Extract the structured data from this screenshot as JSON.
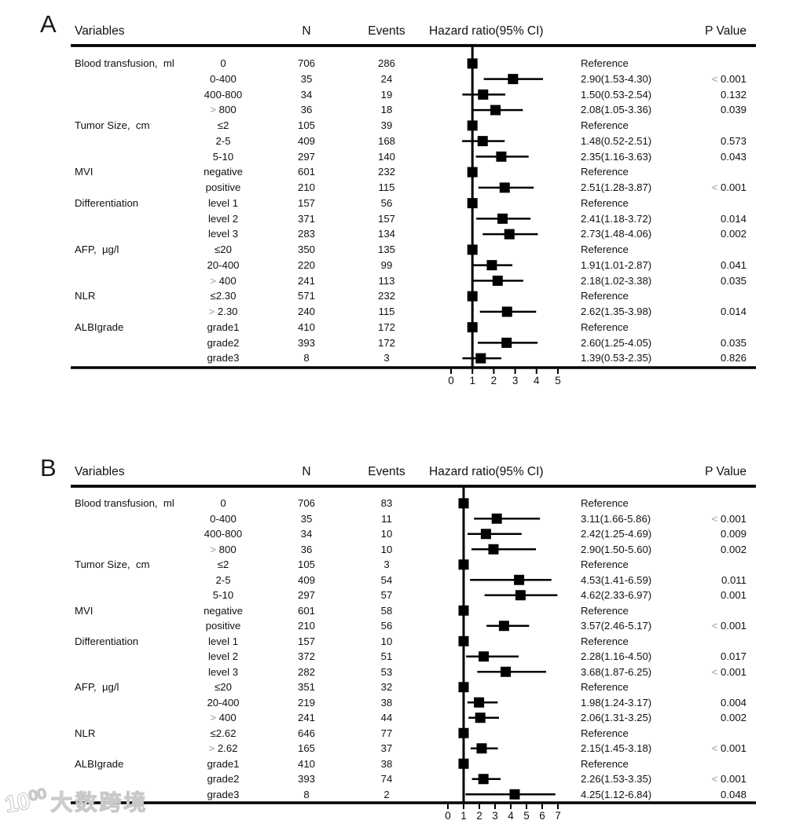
{
  "watermark": {
    "logo": "10⁰⁰",
    "text": "大数跨境"
  },
  "chart_data": [
    {
      "type": "scatter",
      "subtype": "forest-plot",
      "panel_label": "A",
      "title": "Hazard ratio(95% CI)",
      "columns": {
        "variables": "Variables",
        "n": "N",
        "events": "Events",
        "hazard": "Hazard ratio(95% CI)",
        "pvalue": "P Value"
      },
      "xticks": [
        0,
        1,
        2,
        3,
        4,
        5
      ],
      "xlim": [
        0,
        5.7
      ],
      "reference_line": 1,
      "rows": [
        {
          "variable": "Blood transfusion,  ml",
          "level": "0",
          "n": "706",
          "events": "286",
          "hr_text": "Reference",
          "p": "",
          "est": 1,
          "lo": null,
          "hi": null
        },
        {
          "variable": "",
          "level": "0-400",
          "n": "35",
          "events": "24",
          "hr_text": "2.90(1.53-4.30)",
          "p": "< 0.001",
          "est": 2.9,
          "lo": 1.53,
          "hi": 4.3
        },
        {
          "variable": "",
          "level": "400-800",
          "n": "34",
          "events": "19",
          "hr_text": "1.50(0.53-2.54)",
          "p": "0.132",
          "est": 1.5,
          "lo": 0.53,
          "hi": 2.54
        },
        {
          "variable": "",
          "level": "> 800",
          "n": "36",
          "events": "18",
          "hr_text": "2.08(1.05-3.36)",
          "p": "0.039",
          "est": 2.08,
          "lo": 1.05,
          "hi": 3.36
        },
        {
          "variable": "Tumor Size,  cm",
          "level": "≤2",
          "n": "105",
          "events": "39",
          "hr_text": "Reference",
          "p": "",
          "est": 1,
          "lo": null,
          "hi": null
        },
        {
          "variable": "",
          "level": "2-5",
          "n": "409",
          "events": "168",
          "hr_text": "1.48(0.52-2.51)",
          "p": "0.573",
          "est": 1.48,
          "lo": 0.52,
          "hi": 2.51
        },
        {
          "variable": "",
          "level": "5-10",
          "n": "297",
          "events": "140",
          "hr_text": "2.35(1.16-3.63)",
          "p": "0.043",
          "est": 2.35,
          "lo": 1.16,
          "hi": 3.63
        },
        {
          "variable": "MVI",
          "level": "negative",
          "n": "601",
          "events": "232",
          "hr_text": "Reference",
          "p": "",
          "est": 1,
          "lo": null,
          "hi": null
        },
        {
          "variable": "",
          "level": "positive",
          "n": "210",
          "events": "115",
          "hr_text": "2.51(1.28-3.87)",
          "p": "< 0.001",
          "est": 2.51,
          "lo": 1.28,
          "hi": 3.87
        },
        {
          "variable": "Differentiation",
          "level": "level 1",
          "n": "157",
          "events": "56",
          "hr_text": "Reference",
          "p": "",
          "est": 1,
          "lo": null,
          "hi": null
        },
        {
          "variable": "",
          "level": "level 2",
          "n": "371",
          "events": "157",
          "hr_text": "2.41(1.18-3.72)",
          "p": "0.014",
          "est": 2.41,
          "lo": 1.18,
          "hi": 3.72
        },
        {
          "variable": "",
          "level": "level 3",
          "n": "283",
          "events": "134",
          "hr_text": "2.73(1.48-4.06)",
          "p": "0.002",
          "est": 2.73,
          "lo": 1.48,
          "hi": 4.06
        },
        {
          "variable": "AFP,  µg/l",
          "level": "≤20",
          "n": "350",
          "events": "135",
          "hr_text": "Reference",
          "p": "",
          "est": 1,
          "lo": null,
          "hi": null
        },
        {
          "variable": "",
          "level": "20-400",
          "n": "220",
          "events": "99",
          "hr_text": "1.91(1.01-2.87)",
          "p": "0.041",
          "est": 1.91,
          "lo": 1.01,
          "hi": 2.87
        },
        {
          "variable": "",
          "level": "> 400",
          "n": "241",
          "events": "113",
          "hr_text": "2.18(1.02-3.38)",
          "p": "0.035",
          "est": 2.18,
          "lo": 1.02,
          "hi": 3.38
        },
        {
          "variable": "NLR",
          "level": "≤2.30",
          "n": "571",
          "events": "232",
          "hr_text": "Reference",
          "p": "",
          "est": 1,
          "lo": null,
          "hi": null
        },
        {
          "variable": "",
          "level": "> 2.30",
          "n": "240",
          "events": "115",
          "hr_text": "2.62(1.35-3.98)",
          "p": "0.014",
          "est": 2.62,
          "lo": 1.35,
          "hi": 3.98
        },
        {
          "variable": "ALBIgrade",
          "level": "grade1",
          "n": "410",
          "events": "172",
          "hr_text": "Reference",
          "p": "",
          "est": 1,
          "lo": null,
          "hi": null
        },
        {
          "variable": "",
          "level": "grade2",
          "n": "393",
          "events": "172",
          "hr_text": "2.60(1.25-4.05)",
          "p": "0.035",
          "est": 2.6,
          "lo": 1.25,
          "hi": 4.05
        },
        {
          "variable": "",
          "level": "grade3",
          "n": "8",
          "events": "3",
          "hr_text": "1.39(0.53-2.35)",
          "p": "0.826",
          "est": 1.39,
          "lo": 0.53,
          "hi": 2.35
        }
      ]
    },
    {
      "type": "scatter",
      "subtype": "forest-plot",
      "panel_label": "B",
      "title": "Hazard ratio(95% CI)",
      "columns": {
        "variables": "Variables",
        "n": "N",
        "events": "Events",
        "hazard": "Hazard ratio(95% CI)",
        "pvalue": "P Value"
      },
      "xticks": [
        0,
        1,
        2,
        3,
        4,
        5,
        6,
        7
      ],
      "xlim": [
        0,
        7.3
      ],
      "reference_line": 1,
      "rows": [
        {
          "variable": "Blood transfusion,  ml",
          "level": "0",
          "n": "706",
          "events": "83",
          "hr_text": "Reference",
          "p": "",
          "est": 1,
          "lo": null,
          "hi": null
        },
        {
          "variable": "",
          "level": "0-400",
          "n": "35",
          "events": "11",
          "hr_text": "3.11(1.66-5.86)",
          "p": "< 0.001",
          "est": 3.11,
          "lo": 1.66,
          "hi": 5.86
        },
        {
          "variable": "",
          "level": "400-800",
          "n": "34",
          "events": "10",
          "hr_text": "2.42(1.25-4.69)",
          "p": "0.009",
          "est": 2.42,
          "lo": 1.25,
          "hi": 4.69
        },
        {
          "variable": "",
          "level": "> 800",
          "n": "36",
          "events": "10",
          "hr_text": "2.90(1.50-5.60)",
          "p": "0.002",
          "est": 2.9,
          "lo": 1.5,
          "hi": 5.6
        },
        {
          "variable": "Tumor Size,  cm",
          "level": "≤2",
          "n": "105",
          "events": "3",
          "hr_text": "Reference",
          "p": "",
          "est": 1,
          "lo": null,
          "hi": null
        },
        {
          "variable": "",
          "level": "2-5",
          "n": "409",
          "events": "54",
          "hr_text": "4.53(1.41-6.59)",
          "p": "0.011",
          "est": 4.53,
          "lo": 1.41,
          "hi": 6.59
        },
        {
          "variable": "",
          "level": "5-10",
          "n": "297",
          "events": "57",
          "hr_text": "4.62(2.33-6.97)",
          "p": "0.001",
          "est": 4.62,
          "lo": 2.33,
          "hi": 6.97
        },
        {
          "variable": "MVI",
          "level": "negative",
          "n": "601",
          "events": "58",
          "hr_text": "Reference",
          "p": "",
          "est": 1,
          "lo": null,
          "hi": null
        },
        {
          "variable": "",
          "level": "positive",
          "n": "210",
          "events": "56",
          "hr_text": "3.57(2.46-5.17)",
          "p": "< 0.001",
          "est": 3.57,
          "lo": 2.46,
          "hi": 5.17
        },
        {
          "variable": "Differentiation",
          "level": "level 1",
          "n": "157",
          "events": "10",
          "hr_text": "Reference",
          "p": "",
          "est": 1,
          "lo": null,
          "hi": null
        },
        {
          "variable": "",
          "level": "level 2",
          "n": "372",
          "events": "51",
          "hr_text": "2.28(1.16-4.50)",
          "p": "0.017",
          "est": 2.28,
          "lo": 1.16,
          "hi": 4.5
        },
        {
          "variable": "",
          "level": "level 3",
          "n": "282",
          "events": "53",
          "hr_text": "3.68(1.87-6.25)",
          "p": "< 0.001",
          "est": 3.68,
          "lo": 1.87,
          "hi": 6.25
        },
        {
          "variable": "AFP,  µg/l",
          "level": "≤20",
          "n": "351",
          "events": "32",
          "hr_text": "Reference",
          "p": "",
          "est": 1,
          "lo": null,
          "hi": null
        },
        {
          "variable": "",
          "level": "20-400",
          "n": "219",
          "events": "38",
          "hr_text": "1.98(1.24-3.17)",
          "p": "0.004",
          "est": 1.98,
          "lo": 1.24,
          "hi": 3.17
        },
        {
          "variable": "",
          "level": "> 400",
          "n": "241",
          "events": "44",
          "hr_text": "2.06(1.31-3.25)",
          "p": "0.002",
          "est": 2.06,
          "lo": 1.31,
          "hi": 3.25
        },
        {
          "variable": "NLR",
          "level": "≤2.62",
          "n": "646",
          "events": "77",
          "hr_text": "Reference",
          "p": "",
          "est": 1,
          "lo": null,
          "hi": null
        },
        {
          "variable": "",
          "level": "> 2.62",
          "n": "165",
          "events": "37",
          "hr_text": "2.15(1.45-3.18)",
          "p": "< 0.001",
          "est": 2.15,
          "lo": 1.45,
          "hi": 3.18
        },
        {
          "variable": "ALBIgrade",
          "level": "grade1",
          "n": "410",
          "events": "38",
          "hr_text": "Reference",
          "p": "",
          "est": 1,
          "lo": null,
          "hi": null
        },
        {
          "variable": "",
          "level": "grade2",
          "n": "393",
          "events": "74",
          "hr_text": "2.26(1.53-3.35)",
          "p": "< 0.001",
          "est": 2.26,
          "lo": 1.53,
          "hi": 3.35
        },
        {
          "variable": "",
          "level": "grade3",
          "n": "8",
          "events": "2",
          "hr_text": "4.25(1.12-6.84)",
          "p": "0.048",
          "est": 4.25,
          "lo": 1.12,
          "hi": 6.84
        }
      ]
    }
  ]
}
